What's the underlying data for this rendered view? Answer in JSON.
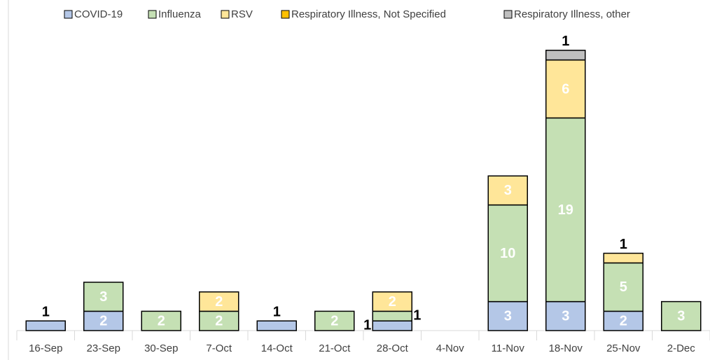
{
  "chart_data": {
    "type": "stacked_bar",
    "categories": [
      "16-Sep",
      "23-Sep",
      "30-Sep",
      "7-Oct",
      "14-Oct",
      "21-Oct",
      "28-Oct",
      "4-Nov",
      "11-Nov",
      "18-Nov",
      "25-Nov",
      "2-Dec"
    ],
    "series": [
      {
        "name": "COVID-19",
        "color": "#b4c7e7",
        "values": [
          1,
          2,
          0,
          0,
          1,
          0,
          1,
          0,
          3,
          3,
          2,
          0
        ]
      },
      {
        "name": "Influenza",
        "color": "#c5e0b4",
        "values": [
          0,
          3,
          2,
          2,
          0,
          2,
          1,
          0,
          10,
          19,
          5,
          3
        ]
      },
      {
        "name": "RSV",
        "color": "#ffe699",
        "values": [
          0,
          0,
          0,
          2,
          0,
          0,
          2,
          0,
          3,
          6,
          1,
          0
        ]
      },
      {
        "name": "Respiratory Illness, Not Specified",
        "color": "#ffc000",
        "values": [
          0,
          0,
          0,
          0,
          0,
          0,
          0,
          0,
          0,
          0,
          0,
          0
        ]
      },
      {
        "name": "Respiratory Illness, other",
        "color": "#bfbfbf",
        "values": [
          0,
          0,
          0,
          0,
          0,
          0,
          0,
          0,
          0,
          1,
          0,
          0
        ]
      }
    ],
    "ylim": [
      0,
      30
    ],
    "legend": "top"
  }
}
